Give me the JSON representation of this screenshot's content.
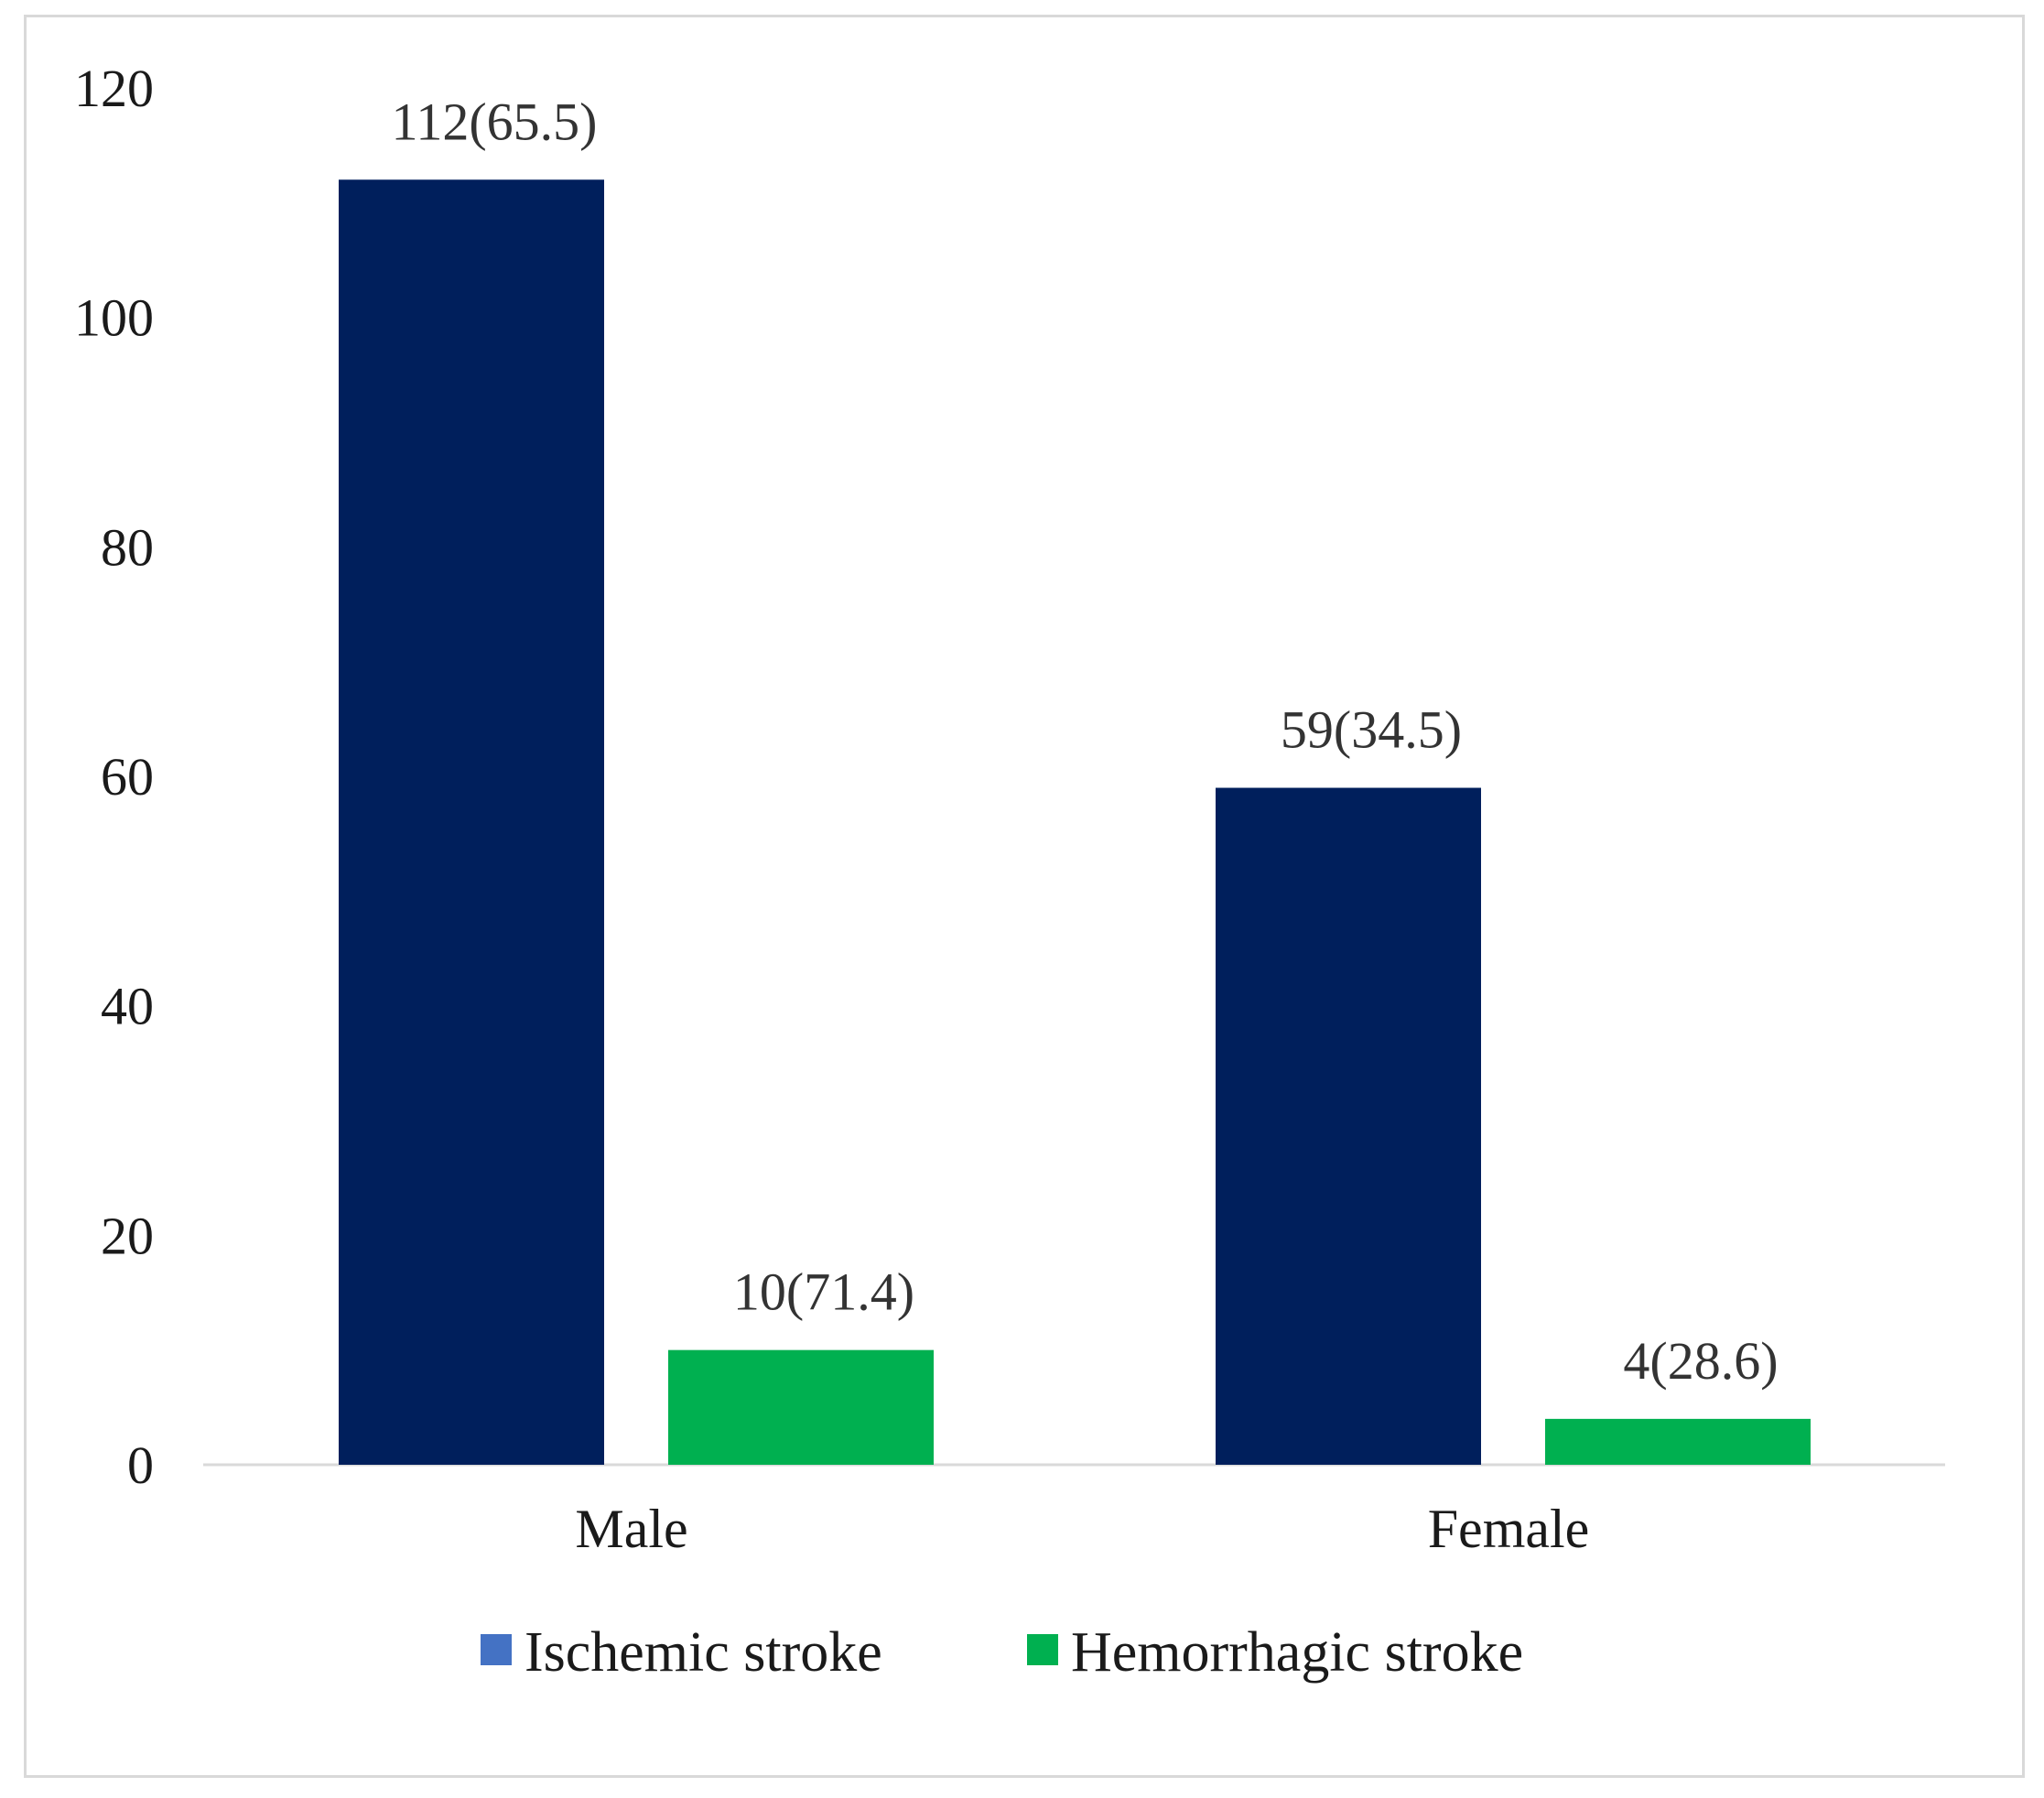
{
  "chart_data": {
    "type": "bar",
    "categories": [
      "Male",
      "Female"
    ],
    "series": [
      {
        "name": "Ischemic stroke",
        "values": [
          112,
          59
        ],
        "labels": [
          "112(65.5)",
          "59(34.5)"
        ],
        "color": "#001f5c",
        "legend_color": "#4472c4"
      },
      {
        "name": "Hemorrhagic stroke",
        "values": [
          10,
          4
        ],
        "labels": [
          "10(71.4)",
          "4(28.6)"
        ],
        "color": "#00b050",
        "legend_color": "#00b050"
      }
    ],
    "y_ticks": [
      "0",
      "20",
      "40",
      "60",
      "80",
      "100",
      "120"
    ],
    "ylim": [
      0,
      120
    ],
    "grid": false,
    "legend_position": "bottom",
    "title": "",
    "xlabel": "",
    "ylabel": ""
  }
}
